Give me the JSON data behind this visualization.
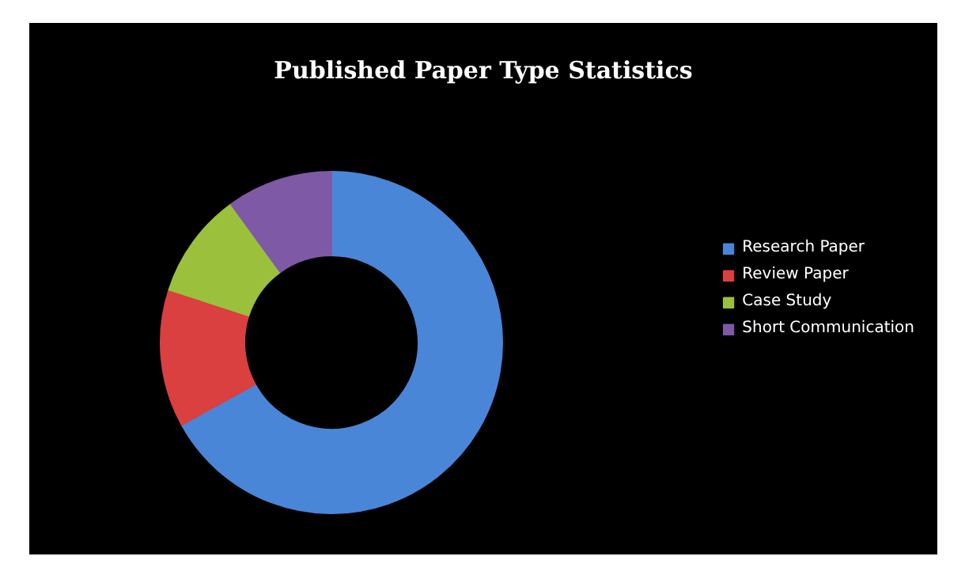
{
  "chart_data": {
    "type": "donut",
    "title": "Published Paper Type Statistics",
    "categories": [
      "Research Paper",
      "Review Paper",
      "Case Study",
      "Short Communication"
    ],
    "values": [
      67,
      13,
      10,
      10
    ],
    "colors": [
      "#4a86d8",
      "#d9403f",
      "#9bc13c",
      "#7e59a5"
    ],
    "legend": "right"
  }
}
